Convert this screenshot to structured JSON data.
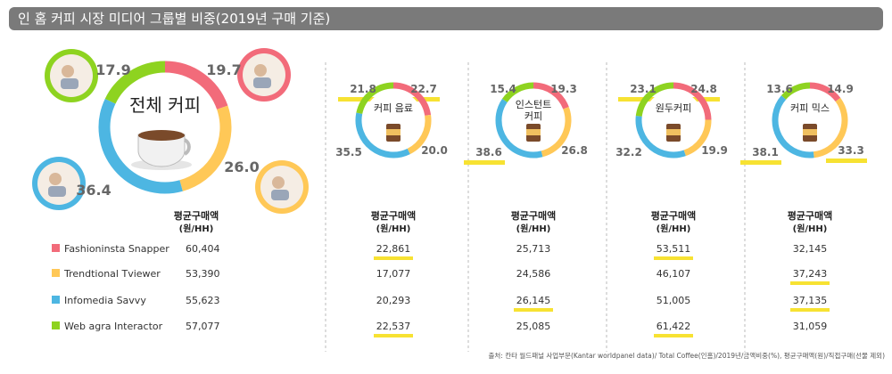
{
  "title": "인 홈 커피 시장 미디어 그룹별 비중(2019년 구매 기준)",
  "source": "출처: 칸타 월드패널 사업부문(Kantar worldpanel data)/ Total Coffee(인홈)/2019년/금액비중(%), 평균구매액(원)/직접구매(선물 제외)",
  "colors": {
    "snapper": "#f26b7a",
    "tviewer": "#ffc857",
    "savvy": "#4db6e2",
    "interactor": "#8ed320",
    "highlight": "#f7e232"
  },
  "metric_header": [
    "평균구매액",
    "(원/HH)"
  ],
  "chart_data": [
    {
      "type": "pie",
      "title": "전체 커피",
      "categories": [
        "Fashioninsta Snapper",
        "Trendtional Tviewer",
        "Infomedia Savvy",
        "Web agra Interactor"
      ],
      "values": [
        19.7,
        26.0,
        36.4,
        17.9
      ],
      "avg_spend": [
        60404,
        53390,
        55623,
        57077
      ]
    },
    {
      "type": "pie",
      "title": "커피 음료",
      "categories": [
        "Fashioninsta Snapper",
        "Trendtional Tviewer",
        "Infomedia Savvy",
        "Web agra Interactor"
      ],
      "values": [
        22.7,
        20.0,
        35.5,
        21.8
      ],
      "avg_spend": [
        22861,
        17077,
        20293,
        22537
      ]
    },
    {
      "type": "pie",
      "title": "인스턴트 커피",
      "categories": [
        "Fashioninsta Snapper",
        "Trendtional Tviewer",
        "Infomedia Savvy",
        "Web agra Interactor"
      ],
      "values": [
        19.3,
        26.8,
        38.6,
        15.4
      ],
      "avg_spend": [
        25713,
        24586,
        26145,
        25085
      ]
    },
    {
      "type": "pie",
      "title": "원두커피",
      "categories": [
        "Fashioninsta Snapper",
        "Trendtional Tviewer",
        "Infomedia Savvy",
        "Web agra Interactor"
      ],
      "values": [
        24.8,
        19.9,
        32.2,
        23.1
      ],
      "avg_spend": [
        53511,
        46107,
        51005,
        61422
      ]
    },
    {
      "type": "pie",
      "title": "커피 믹스",
      "categories": [
        "Fashioninsta Snapper",
        "Trendtional Tviewer",
        "Infomedia Savvy",
        "Web agra Interactor"
      ],
      "values": [
        14.9,
        33.3,
        38.1,
        13.6
      ],
      "avg_spend": [
        32145,
        37243,
        37135,
        31059
      ]
    }
  ]
}
